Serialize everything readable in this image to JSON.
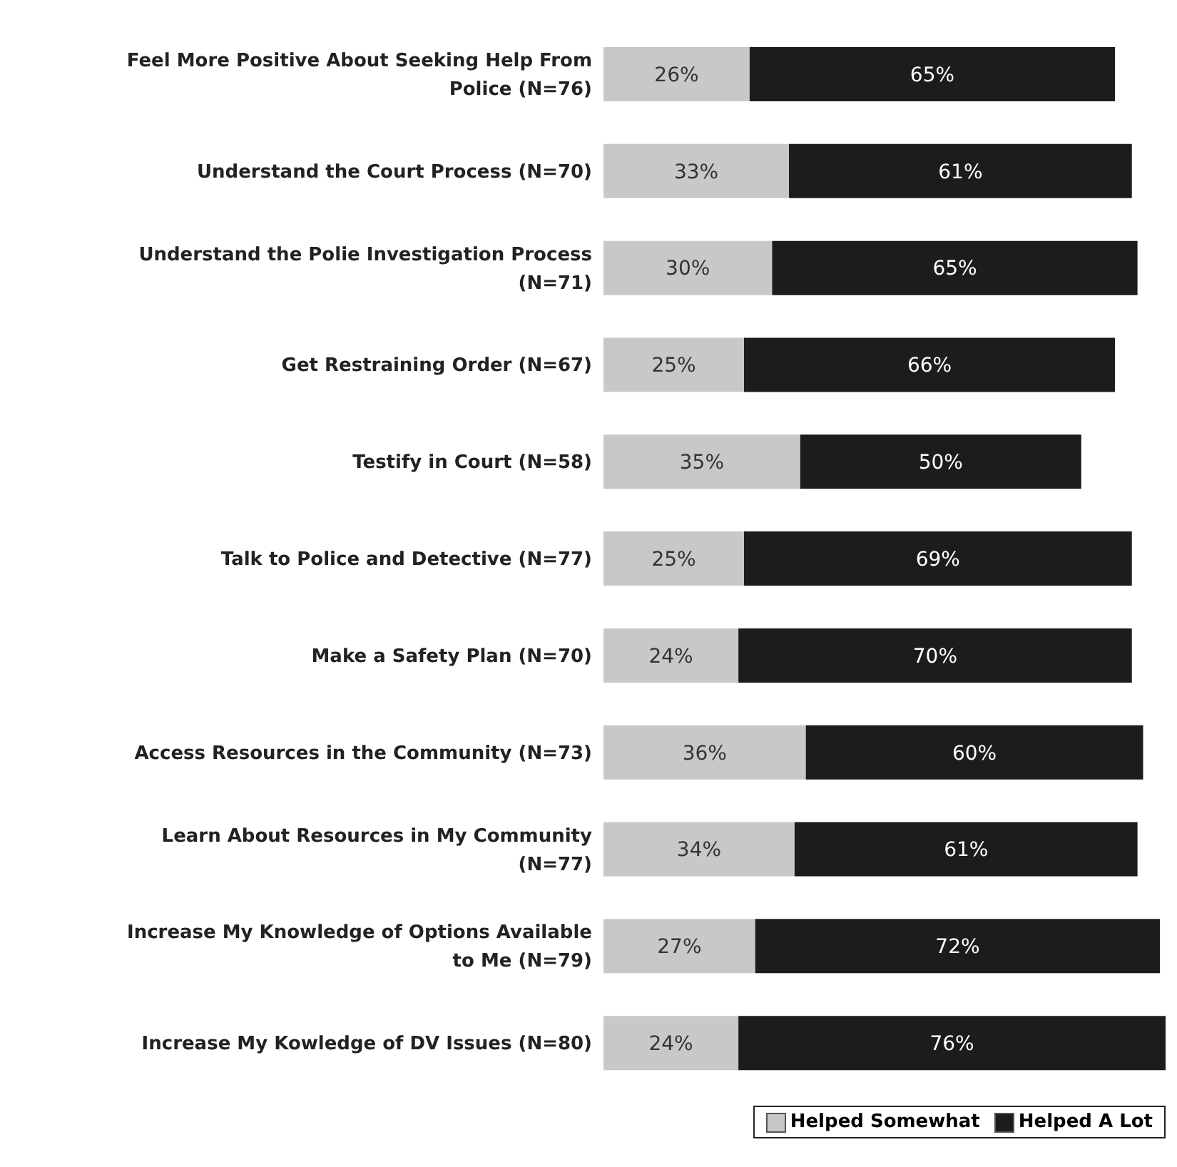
{
  "chart_data": {
    "type": "bar",
    "orientation": "horizontal",
    "stacked": true,
    "categories": [
      "Feel More Positive About Seeking Help From Police (N=76)",
      "Understand the Court Process (N=70)",
      "Understand the Polie Investigation Process (N=71)",
      "Get Restraining Order (N=67)",
      "Testify in Court (N=58)",
      "Talk to Police and Detective (N=77)",
      "Make a Safety Plan (N=70)",
      "Access Resources in the Community (N=73)",
      "Learn About Resources in My Community (N=77)",
      "Increase My Knowledge of Options Available to Me (N=79)",
      "Increase My Kowledge of DV Issues (N=80)"
    ],
    "series": [
      {
        "name": "Helped Somewhat",
        "color": "#c8c8c8",
        "values": [
          26,
          33,
          30,
          25,
          35,
          25,
          24,
          36,
          34,
          27,
          24
        ],
        "value_labels": [
          "26%",
          "33%",
          "30%",
          "25%",
          "35%",
          "25%",
          "24%",
          "36%",
          "34%",
          "27%",
          "24%"
        ]
      },
      {
        "name": "Helped A Lot",
        "color": "#1c1c1c",
        "values": [
          65,
          61,
          65,
          66,
          50,
          69,
          70,
          60,
          61,
          72,
          76
        ],
        "value_labels": [
          "65%",
          "61%",
          "65%",
          "66%",
          "50%",
          "69%",
          "70%",
          "60%",
          "61%",
          "72%",
          "76%"
        ]
      }
    ],
    "xlim": [
      0,
      100
    ],
    "tick_labels": "y",
    "legend": "bottom right"
  }
}
